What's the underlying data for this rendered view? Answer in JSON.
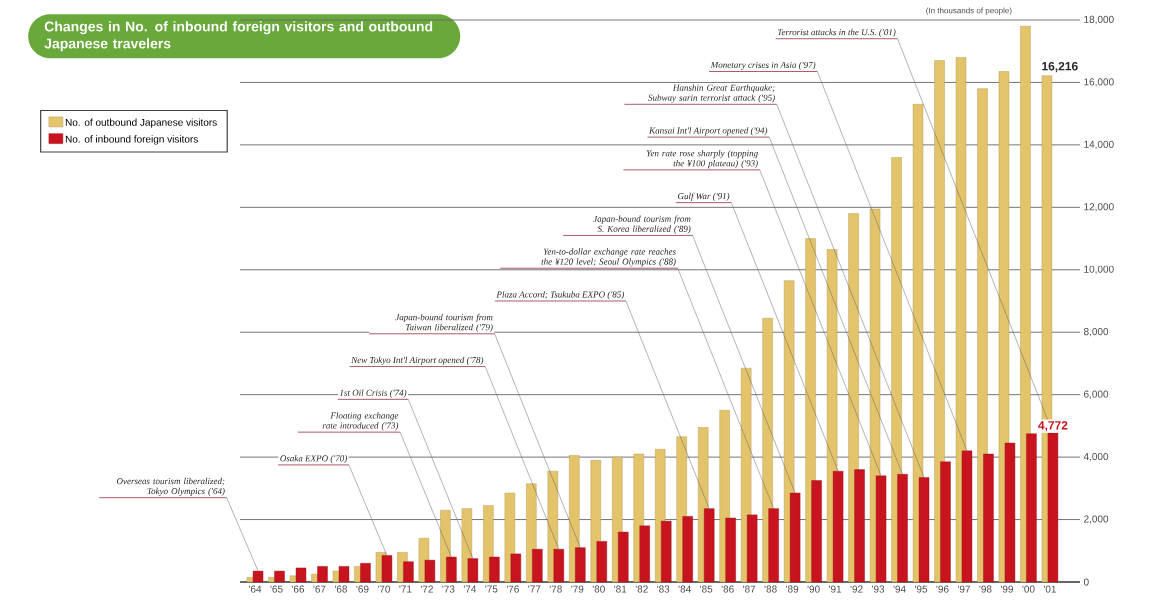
{
  "chart_data": {
    "type": "bar",
    "title": "Changes in No. of inbound foreign visitors and outbound Japanese travelers",
    "categories": [
      "'64",
      "'65",
      "'66",
      "'67",
      "'68",
      "'69",
      "'70",
      "'71",
      "'72",
      "'73",
      "'74",
      "'75",
      "'76",
      "'77",
      "'78",
      "'79",
      "'80",
      "'81",
      "'82",
      "'83",
      "'84",
      "'85",
      "'86",
      "'87",
      "'88",
      "'89",
      "'90",
      "'91",
      "'92",
      "'93",
      "'94",
      "'95",
      "'96",
      "'97",
      "'98",
      "'99",
      "'00",
      "'01"
    ],
    "series": [
      {
        "name": "No. of outbound Japanese visitors",
        "color": "#e3c46a",
        "values": [
          150,
          150,
          200,
          250,
          350,
          500,
          950,
          950,
          1400,
          2300,
          2350,
          2450,
          2850,
          3150,
          3550,
          4050,
          3900,
          4000,
          4100,
          4250,
          4650,
          4950,
          5500,
          6850,
          8450,
          9650,
          11000,
          10650,
          11800,
          11950,
          13600,
          15300,
          16700,
          16800,
          15800,
          16350,
          17800,
          16216
        ],
        "value_labels": [
          null,
          null,
          null,
          null,
          null,
          null,
          null,
          null,
          null,
          null,
          null,
          null,
          null,
          null,
          null,
          null,
          null,
          null,
          null,
          null,
          null,
          null,
          null,
          null,
          null,
          null,
          null,
          null,
          null,
          null,
          null,
          null,
          null,
          null,
          null,
          null,
          null,
          "16,216"
        ]
      },
      {
        "name": "No. of inbound foreign visitors",
        "color": "#c8141e",
        "values": [
          350,
          350,
          450,
          500,
          500,
          600,
          850,
          650,
          700,
          800,
          750,
          800,
          900,
          1050,
          1050,
          1100,
          1300,
          1600,
          1800,
          1950,
          2100,
          2350,
          2050,
          2150,
          2350,
          2850,
          3250,
          3550,
          3600,
          3400,
          3450,
          3350,
          3850,
          4200,
          4100,
          4450,
          4750,
          4772
        ],
        "value_labels": [
          null,
          null,
          null,
          null,
          null,
          null,
          null,
          null,
          null,
          null,
          null,
          null,
          null,
          null,
          null,
          null,
          null,
          null,
          null,
          null,
          null,
          null,
          null,
          null,
          null,
          null,
          null,
          null,
          null,
          null,
          null,
          null,
          null,
          null,
          null,
          null,
          null,
          "4,772"
        ]
      }
    ],
    "ylim": [
      0,
      18000
    ],
    "yticks": [
      0,
      {
        "value": 2000,
        "label": "2,000"
      },
      {
        "value": 4000,
        "label": "4,000"
      },
      {
        "value": 6000,
        "label": "6,000"
      },
      {
        "value": 8000,
        "label": "8,000"
      },
      {
        "value": 10000,
        "label": "10,000"
      },
      {
        "value": 12000,
        "label": "12,000"
      },
      {
        "value": 14000,
        "label": "14,000"
      },
      {
        "value": 16000,
        "label": "16,000"
      },
      {
        "value": 18000,
        "label": "18,000"
      }
    ],
    "grid": "y",
    "legend": "top left",
    "annotations": [
      {
        "text": "Overseas tourism liberalized; Tokyo Olympics ('64)",
        "x": "'64",
        "y": 350
      },
      {
        "text": "Osaka EXPO ('70)",
        "x": "'70",
        "y": 850
      },
      {
        "text": "Floating exchange rate introduced ('73)",
        "x": "'73",
        "y": 800
      },
      {
        "text": "1st Oil Crisis ('74)",
        "x": "'74",
        "y": 750
      },
      {
        "text": "New Tokyo Int'l Airport opened ('78)",
        "x": "'78",
        "y": 1050
      },
      {
        "text": "Japan-bound tourism from Taiwan liberalized ('79)",
        "x": "'79",
        "y": 1100
      },
      {
        "text": "Plaza Accord; Tsukuba EXPO ('85)",
        "x": "'85",
        "y": 2350
      },
      {
        "text": "Yen-to-dollar exchange rate reaches the ¥120 level; Seoul Olympics ('88)",
        "x": "'88",
        "y": 2350
      },
      {
        "text": "Japan-bound tourism from S. Korea liberalized ('89)",
        "x": "'89",
        "y": 2850
      },
      {
        "text": "Gulf War ('91)",
        "x": "'91",
        "y": 3550
      },
      {
        "text": "Yen rate rose sharply (topping the ¥100 plateau) ('93)",
        "x": "'93",
        "y": 3400
      },
      {
        "text": "Kansai Int'l Airport opened ('94)",
        "x": "'94",
        "y": 3450
      },
      {
        "text": "Hanshin Great Earthquake; Subway sarin terrorist attack ('95)",
        "x": "'95",
        "y": 3350
      },
      {
        "text": "Monetary crises in Asia ('97)",
        "x": "'97",
        "y": 4200
      },
      {
        "text": "Terrorist attacks in the U.S. ('01)",
        "x": "'01",
        "y": 4772
      },
      "(In thousands of people)"
    ]
  }
}
